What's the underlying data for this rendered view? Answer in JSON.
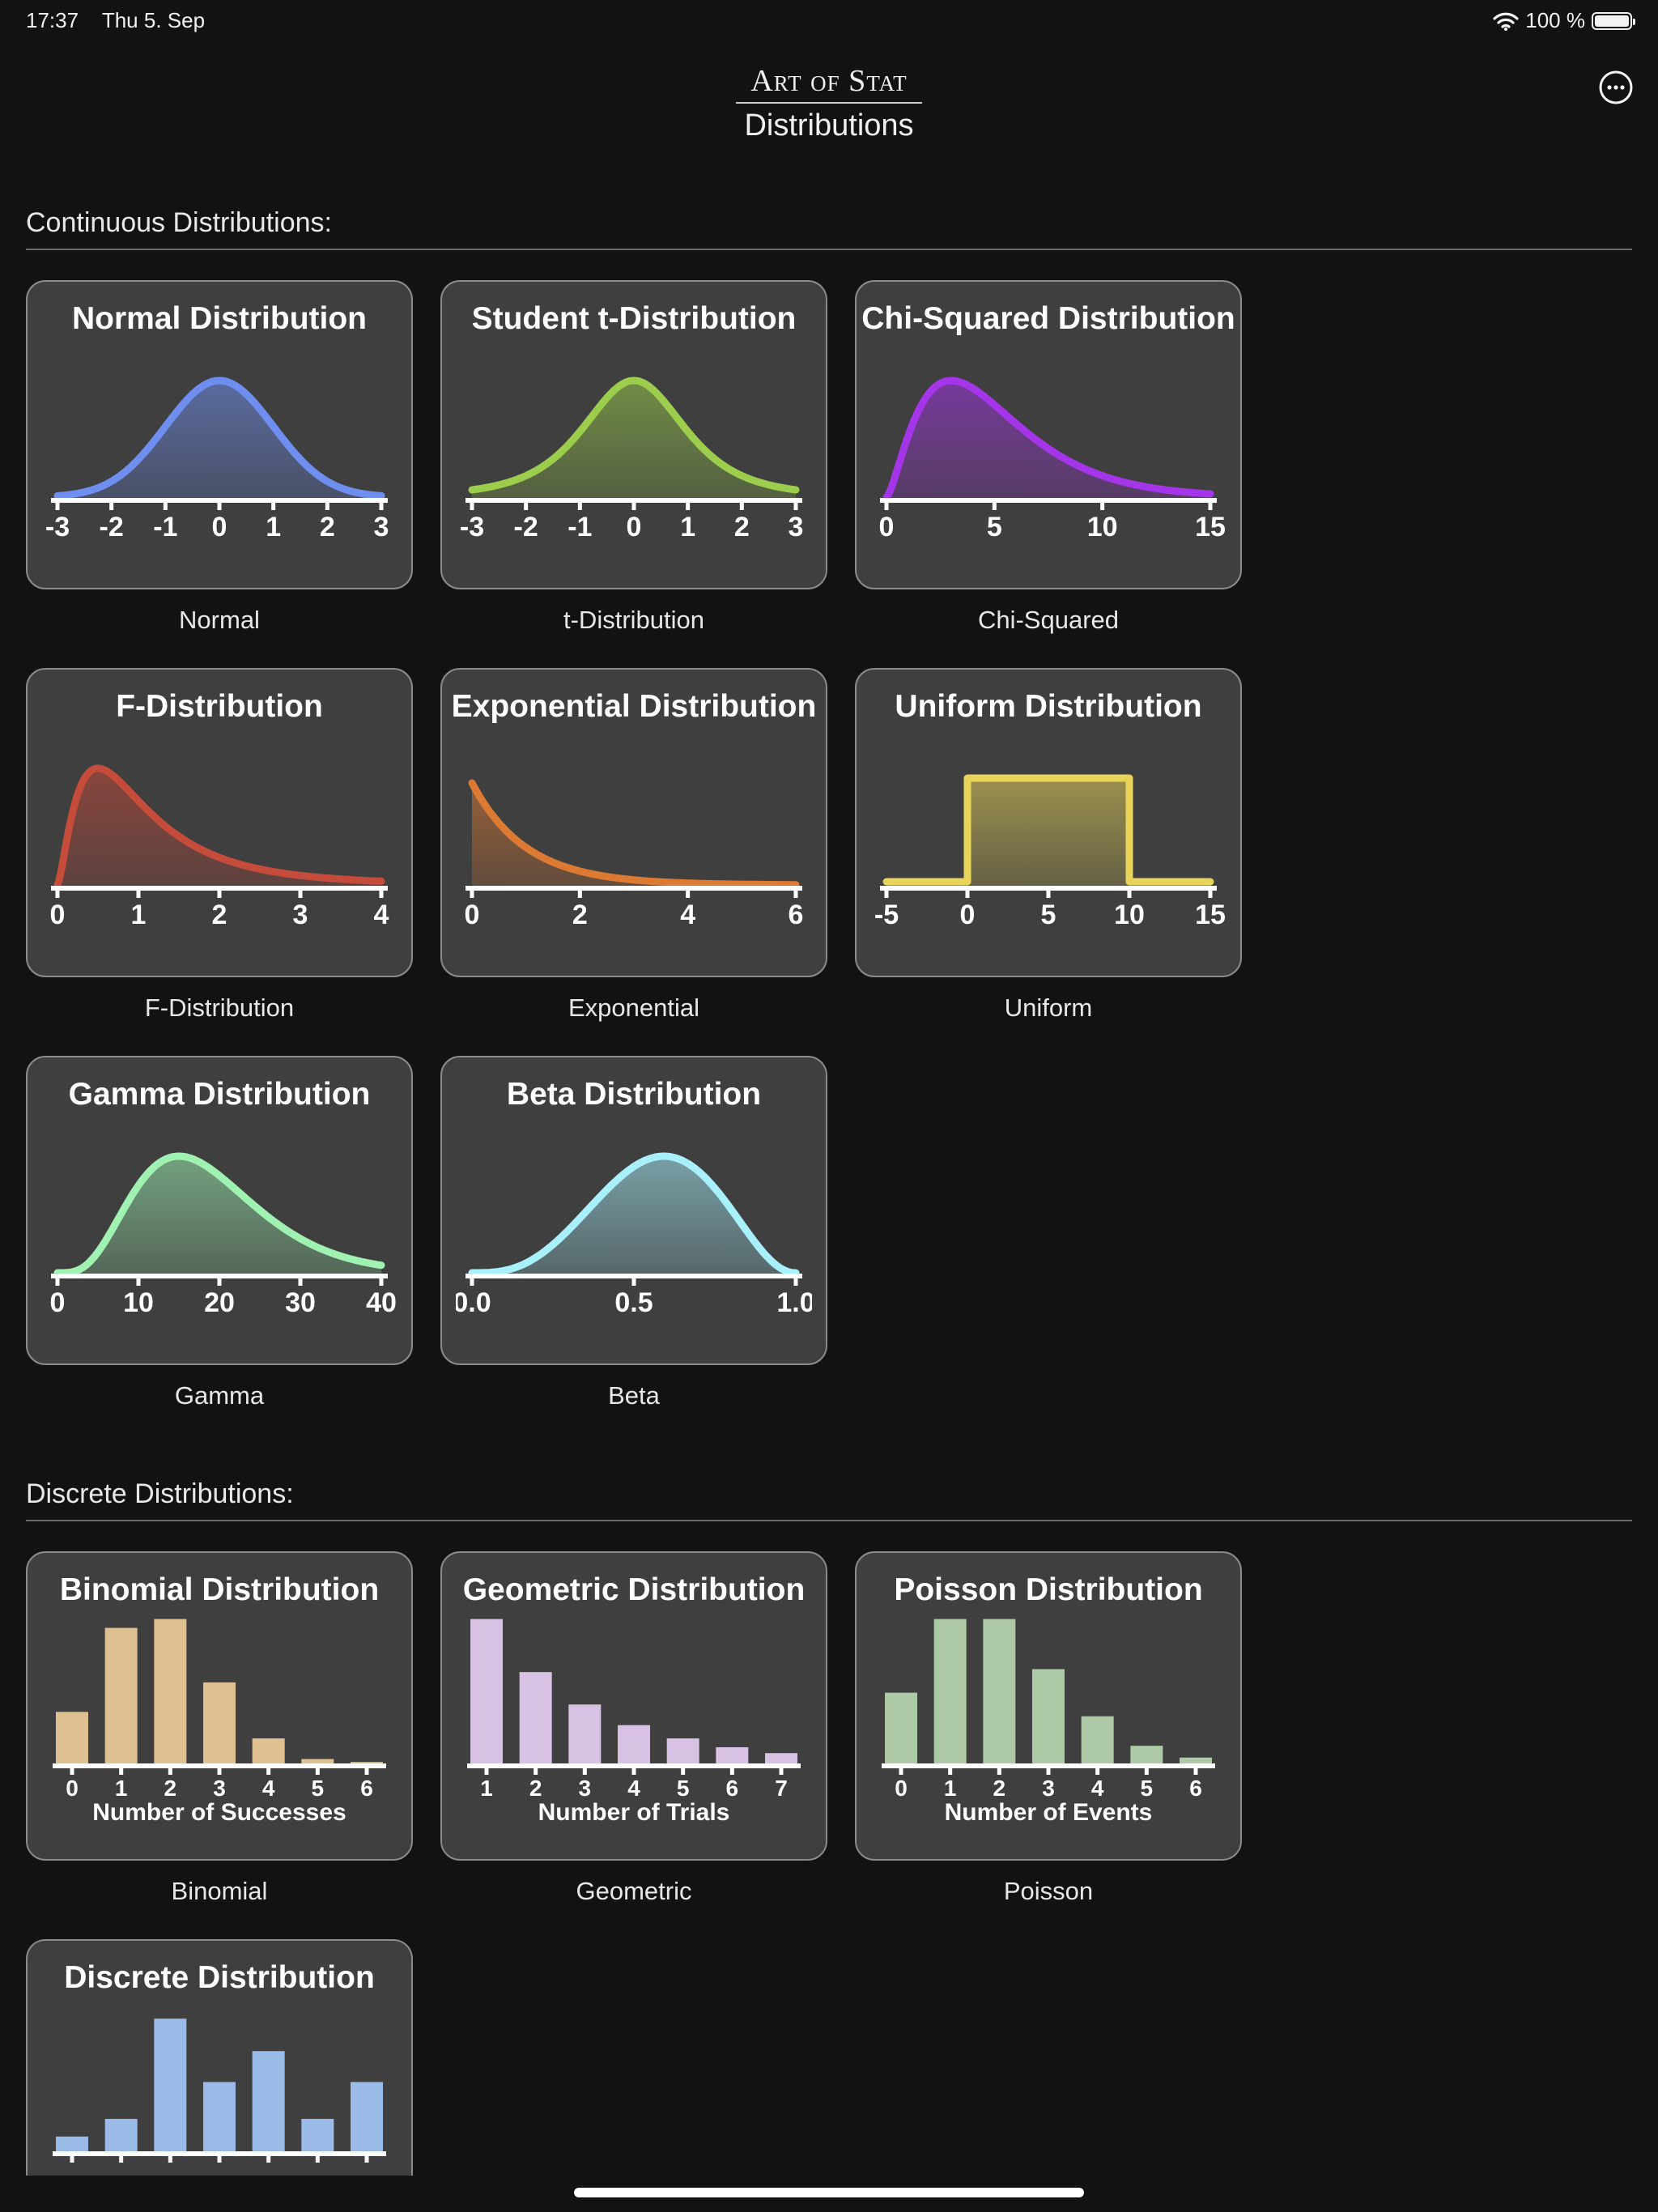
{
  "status_bar": {
    "time": "17:37",
    "date": "Thu 5. Sep",
    "battery": "100 %"
  },
  "header": {
    "brand": "Art of Stat",
    "title": "Distributions"
  },
  "sections": {
    "continuous": {
      "title": "Continuous Distributions:"
    },
    "discrete": {
      "title": "Discrete Distributions:"
    }
  },
  "cards": {
    "normal": {
      "title": "Normal Distribution",
      "caption": "Normal",
      "color": "#6f8ff0"
    },
    "t": {
      "title": "Student t-Distribution",
      "caption": "t-Distribution",
      "color": "#9ccd4c"
    },
    "chi": {
      "title": "Chi-Squared Distribution",
      "caption": "Chi-Squared",
      "color": "#a535e8"
    },
    "f": {
      "title": "F-Distribution",
      "caption": "F-Distribution",
      "color": "#c54b3a"
    },
    "exponential": {
      "title": "Exponential Distribution",
      "caption": "Exponential",
      "color": "#dc7a33"
    },
    "uniform": {
      "title": "Uniform Distribution",
      "caption": "Uniform",
      "color": "#e8d45a"
    },
    "gamma": {
      "title": "Gamma Distribution",
      "caption": "Gamma",
      "color": "#9ff2b2"
    },
    "beta": {
      "title": "Beta Distribution",
      "caption": "Beta",
      "color": "#a8f0fb"
    },
    "binomial": {
      "title": "Binomial Distribution",
      "caption": "Binomial",
      "color": "#dfc191",
      "xlabel": "Number of Successes"
    },
    "geometric": {
      "title": "Geometric Distribution",
      "caption": "Geometric",
      "color": "#d8c2e3",
      "xlabel": "Number of Trials"
    },
    "poisson": {
      "title": "Poisson Distribution",
      "caption": "Poisson",
      "color": "#adc9a6",
      "xlabel": "Number of Events"
    },
    "discrete": {
      "title": "Discrete Distribution",
      "color": "#9bbce8"
    }
  },
  "chart_data": [
    {
      "id": "normal",
      "type": "area",
      "title": "Normal Distribution",
      "xlim": [
        -3,
        3
      ],
      "xticks": [
        "-3",
        "-2",
        "-1",
        "0",
        "1",
        "2",
        "3"
      ]
    },
    {
      "id": "t",
      "type": "area",
      "title": "Student t-Distribution",
      "xlim": [
        -3,
        3
      ],
      "xticks": [
        "-3",
        "-2",
        "-1",
        "0",
        "1",
        "2",
        "3"
      ]
    },
    {
      "id": "chi",
      "type": "area",
      "title": "Chi-Squared Distribution",
      "xlim": [
        0,
        15
      ],
      "xticks": [
        "0",
        "5",
        "10",
        "15"
      ]
    },
    {
      "id": "f",
      "type": "area",
      "title": "F-Distribution",
      "xlim": [
        0,
        4
      ],
      "xticks": [
        "0",
        "1",
        "2",
        "3",
        "4"
      ]
    },
    {
      "id": "exponential",
      "type": "area",
      "title": "Exponential Distribution",
      "xlim": [
        0,
        6
      ],
      "xticks": [
        "0",
        "2",
        "4",
        "6"
      ]
    },
    {
      "id": "uniform",
      "type": "area",
      "title": "Uniform Distribution",
      "xlim": [
        -5,
        15
      ],
      "xticks": [
        "-5",
        "0",
        "5",
        "10",
        "15"
      ],
      "support": [
        0,
        10
      ]
    },
    {
      "id": "gamma",
      "type": "area",
      "title": "Gamma Distribution",
      "xlim": [
        0,
        40
      ],
      "xticks": [
        "0",
        "10",
        "20",
        "30",
        "40"
      ]
    },
    {
      "id": "beta",
      "type": "area",
      "title": "Beta Distribution",
      "xlim": [
        0,
        1
      ],
      "xticks": [
        "0.0",
        "0.5",
        "1.0"
      ]
    },
    {
      "id": "binomial",
      "type": "bar",
      "title": "Binomial Distribution",
      "xlabel": "Number of Successes",
      "categories": [
        "0",
        "1",
        "2",
        "3",
        "4",
        "5",
        "6"
      ],
      "values": [
        0.35,
        0.92,
        0.98,
        0.55,
        0.17,
        0.03,
        0.01
      ]
    },
    {
      "id": "geometric",
      "type": "bar",
      "title": "Geometric Distribution",
      "xlabel": "Number of Trials",
      "categories": [
        "1",
        "2",
        "3",
        "4",
        "5",
        "6",
        "7"
      ],
      "values": [
        0.98,
        0.62,
        0.4,
        0.26,
        0.17,
        0.11,
        0.07
      ]
    },
    {
      "id": "poisson",
      "type": "bar",
      "title": "Poisson Distribution",
      "xlabel": "Number of Events",
      "categories": [
        "0",
        "1",
        "2",
        "3",
        "4",
        "5",
        "6"
      ],
      "values": [
        0.48,
        0.98,
        0.98,
        0.64,
        0.32,
        0.12,
        0.04
      ]
    },
    {
      "id": "discrete",
      "type": "bar",
      "title": "Discrete Distribution",
      "categories": [
        "",
        "",
        "",
        "",
        "",
        "",
        ""
      ],
      "values": [
        0.1,
        0.22,
        0.9,
        0.47,
        0.68,
        0.22,
        0.47
      ]
    }
  ]
}
